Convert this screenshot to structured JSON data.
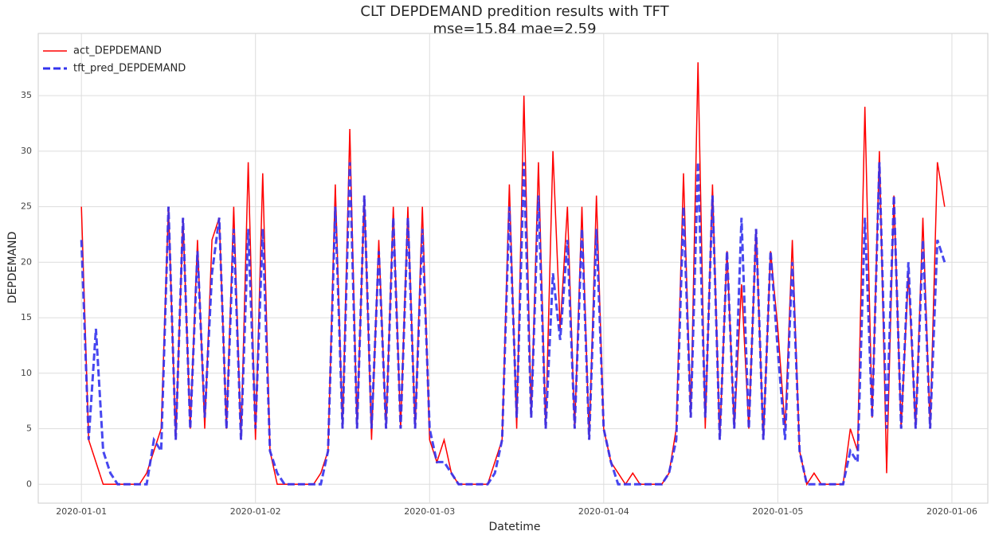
{
  "chart_data": {
    "type": "line",
    "title": "CLT DEPDEMAND predition results with TFT",
    "subtitle": "mse=15.84 mae=2.59",
    "x_label": "Datetime",
    "y_label": "DEPDEMAND",
    "x": [
      "2020-01-01 00:00",
      "2020-01-01 01:00",
      "2020-01-01 02:00",
      "2020-01-01 03:00",
      "2020-01-01 04:00",
      "2020-01-01 05:00",
      "2020-01-01 06:00",
      "2020-01-01 07:00",
      "2020-01-01 08:00",
      "2020-01-01 09:00",
      "2020-01-01 10:00",
      "2020-01-01 11:00",
      "2020-01-01 12:00",
      "2020-01-01 13:00",
      "2020-01-01 14:00",
      "2020-01-01 15:00",
      "2020-01-01 16:00",
      "2020-01-01 17:00",
      "2020-01-01 18:00",
      "2020-01-01 19:00",
      "2020-01-01 20:00",
      "2020-01-01 21:00",
      "2020-01-01 22:00",
      "2020-01-01 23:00",
      "2020-01-02 00:00",
      "2020-01-02 01:00",
      "2020-01-02 02:00",
      "2020-01-02 03:00",
      "2020-01-02 04:00",
      "2020-01-02 05:00",
      "2020-01-02 06:00",
      "2020-01-02 07:00",
      "2020-01-02 08:00",
      "2020-01-02 09:00",
      "2020-01-02 10:00",
      "2020-01-02 11:00",
      "2020-01-02 12:00",
      "2020-01-02 13:00",
      "2020-01-02 14:00",
      "2020-01-02 15:00",
      "2020-01-02 16:00",
      "2020-01-02 17:00",
      "2020-01-02 18:00",
      "2020-01-02 19:00",
      "2020-01-02 20:00",
      "2020-01-02 21:00",
      "2020-01-02 22:00",
      "2020-01-02 23:00",
      "2020-01-03 00:00",
      "2020-01-03 01:00",
      "2020-01-03 02:00",
      "2020-01-03 03:00",
      "2020-01-03 04:00",
      "2020-01-03 05:00",
      "2020-01-03 06:00",
      "2020-01-03 07:00",
      "2020-01-03 08:00",
      "2020-01-03 09:00",
      "2020-01-03 10:00",
      "2020-01-03 11:00",
      "2020-01-03 12:00",
      "2020-01-03 13:00",
      "2020-01-03 14:00",
      "2020-01-03 15:00",
      "2020-01-03 16:00",
      "2020-01-03 17:00",
      "2020-01-03 18:00",
      "2020-01-03 19:00",
      "2020-01-03 20:00",
      "2020-01-03 21:00",
      "2020-01-03 22:00",
      "2020-01-03 23:00",
      "2020-01-04 00:00",
      "2020-01-04 01:00",
      "2020-01-04 02:00",
      "2020-01-04 03:00",
      "2020-01-04 04:00",
      "2020-01-04 05:00",
      "2020-01-04 06:00",
      "2020-01-04 07:00",
      "2020-01-04 08:00",
      "2020-01-04 09:00",
      "2020-01-04 10:00",
      "2020-01-04 11:00",
      "2020-01-04 12:00",
      "2020-01-04 13:00",
      "2020-01-04 14:00",
      "2020-01-04 15:00",
      "2020-01-04 16:00",
      "2020-01-04 17:00",
      "2020-01-04 18:00",
      "2020-01-04 19:00",
      "2020-01-04 20:00",
      "2020-01-04 21:00",
      "2020-01-04 22:00",
      "2020-01-04 23:00",
      "2020-01-05 00:00",
      "2020-01-05 01:00",
      "2020-01-05 02:00",
      "2020-01-05 03:00",
      "2020-01-05 04:00",
      "2020-01-05 05:00",
      "2020-01-05 06:00",
      "2020-01-05 07:00",
      "2020-01-05 08:00",
      "2020-01-05 09:00",
      "2020-01-05 10:00",
      "2020-01-05 11:00",
      "2020-01-05 12:00",
      "2020-01-05 13:00",
      "2020-01-05 14:00",
      "2020-01-05 15:00",
      "2020-01-05 16:00",
      "2020-01-05 17:00",
      "2020-01-05 18:00",
      "2020-01-05 19:00",
      "2020-01-05 20:00",
      "2020-01-05 21:00",
      "2020-01-05 22:00",
      "2020-01-05 23:00"
    ],
    "series": [
      {
        "name": "act_DEPDEMAND",
        "color": "#ff0000",
        "dash": false,
        "values": [
          25,
          4,
          2,
          0,
          0,
          0,
          0,
          0,
          0,
          1,
          3,
          5,
          25,
          4,
          24,
          5,
          22,
          5,
          22,
          24,
          5,
          25,
          4,
          29,
          4,
          28,
          3,
          0,
          0,
          0,
          0,
          0,
          0,
          1,
          3,
          27,
          5,
          32,
          5,
          26,
          4,
          22,
          5,
          25,
          5,
          25,
          5,
          25,
          4,
          2,
          4,
          1,
          0,
          0,
          0,
          0,
          0,
          2,
          4,
          27,
          5,
          35,
          6,
          29,
          5,
          30,
          14,
          25,
          5,
          25,
          4,
          26,
          5,
          2,
          1,
          0,
          1,
          0,
          0,
          0,
          0,
          1,
          5,
          28,
          6,
          38,
          5,
          27,
          4,
          21,
          5,
          18,
          5,
          23,
          4,
          21,
          14,
          5,
          22,
          3,
          0,
          1,
          0,
          0,
          0,
          0,
          5,
          3,
          34,
          6,
          30,
          1,
          26,
          5,
          19,
          5,
          24,
          5,
          29,
          25
        ]
      },
      {
        "name": "tft_pred_DEPDEMAND",
        "color": "#3333ee",
        "dash": true,
        "values": [
          22,
          4,
          14,
          3,
          1,
          0,
          0,
          0,
          0,
          0,
          4,
          3,
          25,
          4,
          24,
          5,
          21,
          6,
          19,
          24,
          5,
          23,
          4,
          23,
          5,
          23,
          3,
          1,
          0,
          0,
          0,
          0,
          0,
          0,
          3,
          25,
          5,
          29,
          5,
          26,
          5,
          21,
          5,
          24,
          5,
          24,
          5,
          23,
          5,
          2,
          2,
          1,
          0,
          0,
          0,
          0,
          0,
          1,
          4,
          25,
          6,
          29,
          6,
          26,
          5,
          19,
          13,
          22,
          5,
          23,
          4,
          23,
          5,
          2,
          0,
          0,
          0,
          0,
          0,
          0,
          0,
          1,
          4,
          25,
          6,
          29,
          6,
          26,
          4,
          21,
          5,
          24,
          5,
          23,
          4,
          21,
          12,
          4,
          20,
          3,
          0,
          0,
          0,
          0,
          0,
          0,
          3,
          2,
          24,
          6,
          29,
          5,
          26,
          5,
          20,
          5,
          22,
          5,
          22,
          20
        ]
      }
    ],
    "xticks": [
      "2020-01-01",
      "2020-01-02",
      "2020-01-03",
      "2020-01-04",
      "2020-01-05",
      "2020-01-06"
    ],
    "ylim": [
      -1.7,
      40.6
    ],
    "yticks": [
      0,
      5,
      10,
      15,
      20,
      25,
      30,
      35
    ],
    "grid": true,
    "legend": "upper left"
  }
}
